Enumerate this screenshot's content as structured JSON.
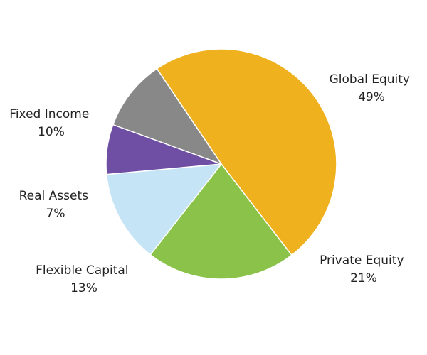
{
  "chart_data": {
    "type": "pie",
    "slices": [
      {
        "name": "Global Equity",
        "value": 49,
        "label": "49%",
        "color": "#F0B11E"
      },
      {
        "name": "Private Equity",
        "value": 21,
        "label": "21%",
        "color": "#8BC34A"
      },
      {
        "name": "Flexible Capital",
        "value": 13,
        "label": "13%",
        "color": "#C5E4F5"
      },
      {
        "name": "Real Assets",
        "value": 7,
        "label": "7%",
        "color": "#6E4FA3"
      },
      {
        "name": "Fixed Income",
        "value": 10,
        "label": "10%",
        "color": "#888888"
      }
    ],
    "start_angle_deg": -124,
    "direction": "clockwise",
    "legend": "none"
  }
}
